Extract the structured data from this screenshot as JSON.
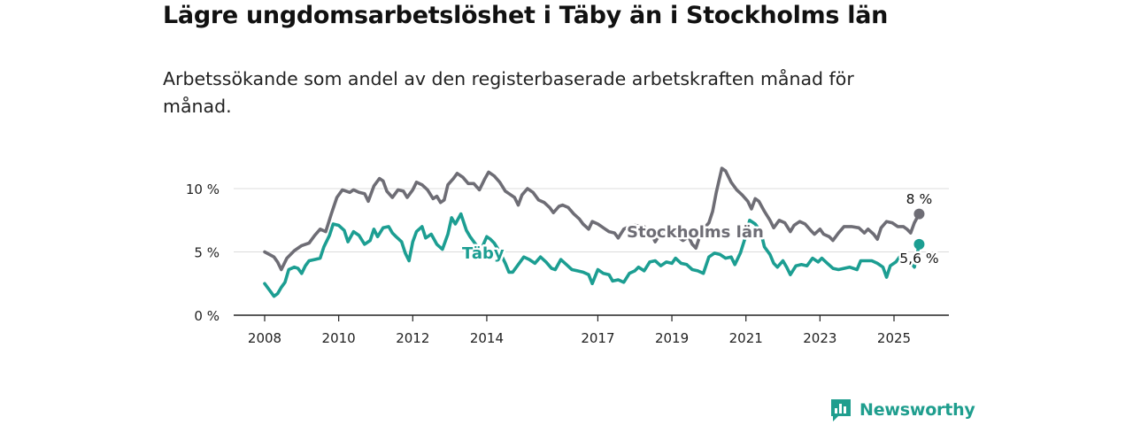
{
  "title": "Lägre ungdomsarbetslöshet i Täby än i Stockholms län",
  "subtitle": "Arbetssökande som andel av den registerbaserade arbetskraften månad för månad.",
  "brand": {
    "name": "Newsworthy",
    "color": "#1f9e8e",
    "icon": "newsworthy-chart-icon"
  },
  "chart_data": {
    "type": "line",
    "title": "Lägre ungdomsarbetslöshet i Täby än i Stockholms län",
    "subtitle": "Arbetssökande som andel av den registerbaserade arbetskraften månad för månad.",
    "xlabel": "",
    "ylabel": "",
    "xlim": [
      2007.9,
      2025.7
    ],
    "ylim": [
      0,
      11
    ],
    "x_ticks": [
      {
        "value": 2008,
        "label": "2008"
      },
      {
        "value": 2010,
        "label": "2010"
      },
      {
        "value": 2012,
        "label": "2012"
      },
      {
        "value": 2014,
        "label": "2014"
      },
      {
        "value": 2017,
        "label": "2017"
      },
      {
        "value": 2019,
        "label": "2019"
      },
      {
        "value": 2021,
        "label": "2021"
      },
      {
        "value": 2023,
        "label": "2023"
      },
      {
        "value": 2025,
        "label": "2025"
      }
    ],
    "y_ticks": [
      {
        "value": 0,
        "label": "0 %"
      },
      {
        "value": 5,
        "label": "5 %"
      },
      {
        "value": 10,
        "label": "10 %"
      }
    ],
    "grid": true,
    "series": [
      {
        "name": "Stockholms län",
        "color": "#6e6d75",
        "end_label": "8 %",
        "points": [
          [
            2008.0,
            5.0
          ],
          [
            2008.25,
            4.6
          ],
          [
            2008.35,
            4.2
          ],
          [
            2008.45,
            3.6
          ],
          [
            2008.6,
            4.5
          ],
          [
            2008.8,
            5.1
          ],
          [
            2009.0,
            5.5
          ],
          [
            2009.2,
            5.7
          ],
          [
            2009.35,
            6.3
          ],
          [
            2009.5,
            6.8
          ],
          [
            2009.65,
            6.6
          ],
          [
            2009.8,
            8.0
          ],
          [
            2009.95,
            9.3
          ],
          [
            2010.1,
            9.9
          ],
          [
            2010.3,
            9.7
          ],
          [
            2010.4,
            9.9
          ],
          [
            2010.55,
            9.7
          ],
          [
            2010.7,
            9.6
          ],
          [
            2010.8,
            9.0
          ],
          [
            2010.95,
            10.2
          ],
          [
            2011.1,
            10.8
          ],
          [
            2011.2,
            10.6
          ],
          [
            2011.3,
            9.8
          ],
          [
            2011.45,
            9.3
          ],
          [
            2011.6,
            9.9
          ],
          [
            2011.75,
            9.8
          ],
          [
            2011.85,
            9.3
          ],
          [
            2012.0,
            9.9
          ],
          [
            2012.1,
            10.5
          ],
          [
            2012.25,
            10.3
          ],
          [
            2012.4,
            9.9
          ],
          [
            2012.55,
            9.2
          ],
          [
            2012.65,
            9.4
          ],
          [
            2012.75,
            8.9
          ],
          [
            2012.85,
            9.1
          ],
          [
            2012.95,
            10.3
          ],
          [
            2013.1,
            10.8
          ],
          [
            2013.2,
            11.2
          ],
          [
            2013.35,
            10.9
          ],
          [
            2013.5,
            10.4
          ],
          [
            2013.65,
            10.4
          ],
          [
            2013.8,
            9.9
          ],
          [
            2013.95,
            10.8
          ],
          [
            2014.05,
            11.3
          ],
          [
            2014.2,
            11.0
          ],
          [
            2014.35,
            10.5
          ],
          [
            2014.5,
            9.8
          ],
          [
            2014.6,
            9.6
          ],
          [
            2014.75,
            9.3
          ],
          [
            2014.85,
            8.7
          ],
          [
            2014.95,
            9.5
          ],
          [
            2015.1,
            10.0
          ],
          [
            2015.25,
            9.7
          ],
          [
            2015.4,
            9.1
          ],
          [
            2015.55,
            8.9
          ],
          [
            2015.7,
            8.5
          ],
          [
            2015.8,
            8.1
          ],
          [
            2015.95,
            8.6
          ],
          [
            2016.05,
            8.7
          ],
          [
            2016.2,
            8.5
          ],
          [
            2016.35,
            8.0
          ],
          [
            2016.5,
            7.6
          ],
          [
            2016.6,
            7.2
          ],
          [
            2016.75,
            6.8
          ],
          [
            2016.85,
            7.4
          ],
          [
            2017.0,
            7.2
          ],
          [
            2017.15,
            6.9
          ],
          [
            2017.3,
            6.6
          ],
          [
            2017.45,
            6.5
          ],
          [
            2017.55,
            6.1
          ],
          [
            2017.7,
            6.8
          ],
          [
            2017.85,
            7.0
          ],
          [
            2018.0,
            7.1
          ],
          [
            2018.25,
            7.0
          ],
          [
            2018.45,
            6.4
          ],
          [
            2018.55,
            5.8
          ],
          [
            2018.7,
            6.5
          ],
          [
            2018.85,
            6.9
          ],
          [
            2019.0,
            6.8
          ],
          [
            2019.15,
            6.2
          ],
          [
            2019.3,
            5.9
          ],
          [
            2019.45,
            6.2
          ],
          [
            2019.55,
            5.6
          ],
          [
            2019.65,
            5.3
          ],
          [
            2019.75,
            6.2
          ],
          [
            2019.85,
            6.8
          ],
          [
            2020.0,
            7.3
          ],
          [
            2020.1,
            8.2
          ],
          [
            2020.2,
            9.7
          ],
          [
            2020.35,
            11.6
          ],
          [
            2020.45,
            11.4
          ],
          [
            2020.6,
            10.5
          ],
          [
            2020.75,
            9.9
          ],
          [
            2020.9,
            9.5
          ],
          [
            2021.05,
            9.0
          ],
          [
            2021.15,
            8.4
          ],
          [
            2021.25,
            9.2
          ],
          [
            2021.35,
            9.0
          ],
          [
            2021.5,
            8.2
          ],
          [
            2021.65,
            7.5
          ],
          [
            2021.75,
            6.9
          ],
          [
            2021.9,
            7.5
          ],
          [
            2022.05,
            7.3
          ],
          [
            2022.2,
            6.6
          ],
          [
            2022.3,
            7.1
          ],
          [
            2022.45,
            7.4
          ],
          [
            2022.6,
            7.2
          ],
          [
            2022.75,
            6.7
          ],
          [
            2022.85,
            6.4
          ],
          [
            2023.0,
            6.8
          ],
          [
            2023.1,
            6.4
          ],
          [
            2023.25,
            6.2
          ],
          [
            2023.35,
            5.9
          ],
          [
            2023.5,
            6.5
          ],
          [
            2023.65,
            7.0
          ],
          [
            2023.85,
            7.0
          ],
          [
            2024.05,
            6.9
          ],
          [
            2024.2,
            6.5
          ],
          [
            2024.3,
            6.8
          ],
          [
            2024.45,
            6.4
          ],
          [
            2024.55,
            6.0
          ],
          [
            2024.65,
            6.9
          ],
          [
            2024.8,
            7.4
          ],
          [
            2024.95,
            7.3
          ],
          [
            2025.1,
            7.0
          ],
          [
            2025.25,
            7.0
          ],
          [
            2025.35,
            6.8
          ],
          [
            2025.45,
            6.5
          ],
          [
            2025.55,
            7.3
          ],
          [
            2025.68,
            8.0
          ]
        ]
      },
      {
        "name": "Täby",
        "color": "#1c9e92",
        "end_label": "5,6 %",
        "points": [
          [
            2008.0,
            2.5
          ],
          [
            2008.15,
            1.9
          ],
          [
            2008.25,
            1.5
          ],
          [
            2008.35,
            1.7
          ],
          [
            2008.45,
            2.2
          ],
          [
            2008.55,
            2.6
          ],
          [
            2008.65,
            3.6
          ],
          [
            2008.8,
            3.8
          ],
          [
            2008.9,
            3.7
          ],
          [
            2009.0,
            3.3
          ],
          [
            2009.1,
            3.9
          ],
          [
            2009.2,
            4.3
          ],
          [
            2009.35,
            4.4
          ],
          [
            2009.5,
            4.5
          ],
          [
            2009.6,
            5.4
          ],
          [
            2009.75,
            6.3
          ],
          [
            2009.85,
            7.2
          ],
          [
            2010.0,
            7.1
          ],
          [
            2010.15,
            6.7
          ],
          [
            2010.25,
            5.8
          ],
          [
            2010.4,
            6.6
          ],
          [
            2010.55,
            6.3
          ],
          [
            2010.7,
            5.6
          ],
          [
            2010.85,
            5.9
          ],
          [
            2010.95,
            6.8
          ],
          [
            2011.05,
            6.2
          ],
          [
            2011.2,
            6.9
          ],
          [
            2011.35,
            7.0
          ],
          [
            2011.45,
            6.5
          ],
          [
            2011.55,
            6.2
          ],
          [
            2011.7,
            5.8
          ],
          [
            2011.8,
            4.9
          ],
          [
            2011.9,
            4.3
          ],
          [
            2012.0,
            5.8
          ],
          [
            2012.1,
            6.6
          ],
          [
            2012.25,
            7.0
          ],
          [
            2012.35,
            6.1
          ],
          [
            2012.5,
            6.4
          ],
          [
            2012.65,
            5.6
          ],
          [
            2012.8,
            5.2
          ],
          [
            2012.95,
            6.4
          ],
          [
            2013.05,
            7.7
          ],
          [
            2013.15,
            7.2
          ],
          [
            2013.3,
            8.0
          ],
          [
            2013.45,
            6.7
          ],
          [
            2013.55,
            6.2
          ],
          [
            2013.7,
            5.6
          ],
          [
            2013.85,
            5.2
          ],
          [
            2014.0,
            6.2
          ],
          [
            2014.1,
            6.0
          ],
          [
            2014.2,
            5.7
          ],
          [
            2014.35,
            5.0
          ],
          [
            2014.5,
            4.1
          ],
          [
            2014.6,
            3.4
          ],
          [
            2014.7,
            3.4
          ],
          [
            2014.85,
            4.0
          ],
          [
            2015.0,
            4.6
          ],
          [
            2015.15,
            4.4
          ],
          [
            2015.3,
            4.1
          ],
          [
            2015.45,
            4.6
          ],
          [
            2015.6,
            4.2
          ],
          [
            2015.75,
            3.7
          ],
          [
            2015.85,
            3.6
          ],
          [
            2016.0,
            4.4
          ],
          [
            2016.15,
            4.0
          ],
          [
            2016.3,
            3.6
          ],
          [
            2016.45,
            3.5
          ],
          [
            2016.6,
            3.4
          ],
          [
            2016.75,
            3.2
          ],
          [
            2016.85,
            2.5
          ],
          [
            2017.0,
            3.6
          ],
          [
            2017.15,
            3.3
          ],
          [
            2017.3,
            3.2
          ],
          [
            2017.4,
            2.7
          ],
          [
            2017.55,
            2.8
          ],
          [
            2017.7,
            2.6
          ],
          [
            2017.85,
            3.3
          ],
          [
            2018.0,
            3.5
          ],
          [
            2018.1,
            3.8
          ],
          [
            2018.25,
            3.5
          ],
          [
            2018.4,
            4.2
          ],
          [
            2018.55,
            4.3
          ],
          [
            2018.7,
            3.9
          ],
          [
            2018.85,
            4.2
          ],
          [
            2019.0,
            4.1
          ],
          [
            2019.1,
            4.5
          ],
          [
            2019.25,
            4.1
          ],
          [
            2019.4,
            4.0
          ],
          [
            2019.55,
            3.6
          ],
          [
            2019.7,
            3.5
          ],
          [
            2019.85,
            3.3
          ],
          [
            2020.0,
            4.6
          ],
          [
            2020.15,
            4.9
          ],
          [
            2020.3,
            4.8
          ],
          [
            2020.45,
            4.5
          ],
          [
            2020.6,
            4.6
          ],
          [
            2020.7,
            4.0
          ],
          [
            2020.85,
            4.9
          ],
          [
            2021.0,
            6.3
          ],
          [
            2021.1,
            7.5
          ],
          [
            2021.25,
            7.2
          ],
          [
            2021.4,
            6.6
          ],
          [
            2021.5,
            5.4
          ],
          [
            2021.65,
            4.8
          ],
          [
            2021.75,
            4.1
          ],
          [
            2021.85,
            3.8
          ],
          [
            2022.0,
            4.3
          ],
          [
            2022.1,
            3.8
          ],
          [
            2022.2,
            3.2
          ],
          [
            2022.35,
            3.9
          ],
          [
            2022.5,
            4.0
          ],
          [
            2022.65,
            3.9
          ],
          [
            2022.8,
            4.5
          ],
          [
            2022.95,
            4.2
          ],
          [
            2023.05,
            4.5
          ],
          [
            2023.2,
            4.1
          ],
          [
            2023.35,
            3.7
          ],
          [
            2023.5,
            3.6
          ],
          [
            2023.65,
            3.7
          ],
          [
            2023.8,
            3.8
          ],
          [
            2024.0,
            3.6
          ],
          [
            2024.1,
            4.3
          ],
          [
            2024.25,
            4.3
          ],
          [
            2024.4,
            4.3
          ],
          [
            2024.55,
            4.1
          ],
          [
            2024.7,
            3.8
          ],
          [
            2024.8,
            3.0
          ],
          [
            2024.9,
            3.9
          ],
          [
            2025.05,
            4.2
          ],
          [
            2025.15,
            4.6
          ],
          [
            2025.3,
            4.3
          ],
          [
            2025.45,
            4.2
          ],
          [
            2025.55,
            3.8
          ],
          [
            2025.68,
            5.6
          ]
        ]
      }
    ]
  }
}
